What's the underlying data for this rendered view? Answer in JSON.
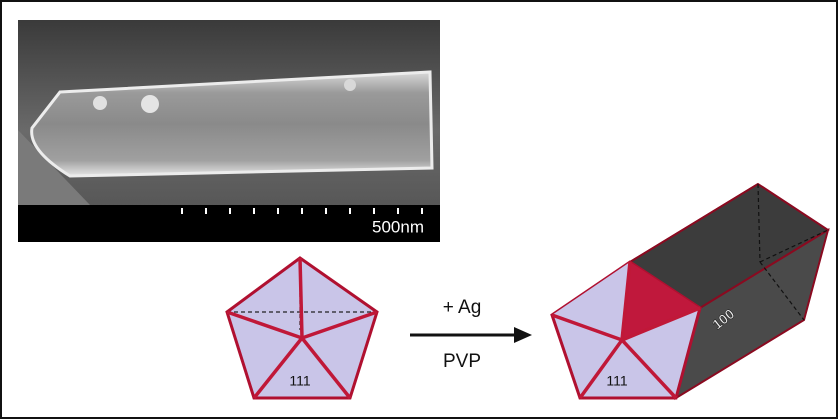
{
  "image": {
    "scale_bar": "500nm"
  },
  "diagram": {
    "reagent": "+ Ag",
    "condition": "PVP",
    "seed_face_label": "111",
    "wire_face_label": "111",
    "wire_side_label": "100"
  }
}
